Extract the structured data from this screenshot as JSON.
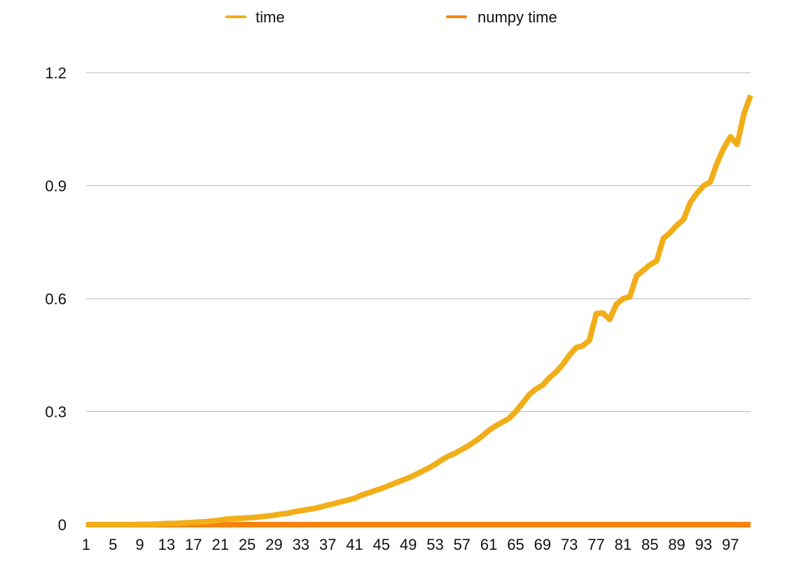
{
  "chart_data": {
    "type": "line",
    "title": "",
    "xlabel": "",
    "ylabel": "",
    "x": [
      1,
      2,
      3,
      4,
      5,
      6,
      7,
      8,
      9,
      10,
      11,
      12,
      13,
      14,
      15,
      16,
      17,
      18,
      19,
      20,
      21,
      22,
      23,
      24,
      25,
      26,
      27,
      28,
      29,
      30,
      31,
      32,
      33,
      34,
      35,
      36,
      37,
      38,
      39,
      40,
      41,
      42,
      43,
      44,
      45,
      46,
      47,
      48,
      49,
      50,
      51,
      52,
      53,
      54,
      55,
      56,
      57,
      58,
      59,
      60,
      61,
      62,
      63,
      64,
      65,
      66,
      67,
      68,
      69,
      70,
      71,
      72,
      73,
      74,
      75,
      76,
      77,
      78,
      79,
      80,
      81,
      82,
      83,
      84,
      85,
      86,
      87,
      88,
      89,
      90,
      91,
      92,
      93,
      94,
      95,
      96,
      97,
      98,
      99,
      100
    ],
    "x_tick_labels": [
      "1",
      "5",
      "9",
      "13",
      "17",
      "21",
      "25",
      "29",
      "33",
      "37",
      "41",
      "45",
      "49",
      "53",
      "57",
      "61",
      "65",
      "69",
      "73",
      "77",
      "81",
      "85",
      "89",
      "93",
      "97"
    ],
    "ylim": [
      0,
      1.2
    ],
    "y_ticks": [
      "0",
      "0.3",
      "0.6",
      "0.9",
      "1.2"
    ],
    "y_tick_values": [
      0,
      0.3,
      0.6,
      0.9,
      1.2
    ],
    "grid": "horizontal",
    "legend_position": "top",
    "series": [
      {
        "name": "time",
        "color": "#f2ae18",
        "values": [
          0.0,
          0.0,
          0.0,
          0.0,
          0.0,
          0.0,
          0.0,
          0.0,
          0.001,
          0.001,
          0.001,
          0.002,
          0.003,
          0.003,
          0.004,
          0.005,
          0.006,
          0.007,
          0.008,
          0.01,
          0.012,
          0.015,
          0.016,
          0.017,
          0.018,
          0.019,
          0.021,
          0.023,
          0.025,
          0.028,
          0.03,
          0.034,
          0.037,
          0.04,
          0.043,
          0.047,
          0.052,
          0.056,
          0.061,
          0.065,
          0.07,
          0.078,
          0.084,
          0.09,
          0.096,
          0.103,
          0.11,
          0.117,
          0.124,
          0.132,
          0.141,
          0.15,
          0.16,
          0.172,
          0.182,
          0.19,
          0.2,
          0.21,
          0.222,
          0.235,
          0.25,
          0.262,
          0.272,
          0.282,
          0.3,
          0.322,
          0.345,
          0.36,
          0.37,
          0.39,
          0.405,
          0.425,
          0.45,
          0.47,
          0.475,
          0.49,
          0.56,
          0.562,
          0.545,
          0.585,
          0.6,
          0.605,
          0.66,
          0.675,
          0.69,
          0.7,
          0.76,
          0.775,
          0.795,
          0.81,
          0.855,
          0.88,
          0.9,
          0.91,
          0.96,
          1.0,
          1.03,
          1.01,
          1.09,
          1.14
        ]
      },
      {
        "name": "numpy time",
        "color": "#f7820f",
        "values": [
          0,
          0,
          0,
          0,
          0,
          0,
          0,
          0,
          0,
          0,
          0,
          0,
          0,
          0,
          0,
          0,
          0,
          0,
          0,
          0,
          0,
          0,
          0,
          0,
          0,
          0,
          0,
          0,
          0,
          0,
          0,
          0,
          0,
          0,
          0,
          0,
          0,
          0,
          0,
          0,
          0,
          0,
          0,
          0,
          0,
          0,
          0,
          0,
          0,
          0,
          0,
          0,
          0,
          0,
          0,
          0,
          0,
          0,
          0,
          0,
          0,
          0,
          0,
          0,
          0,
          0,
          0,
          0,
          0,
          0,
          0,
          0,
          0,
          0,
          0,
          0,
          0,
          0,
          0,
          0,
          0,
          0,
          0,
          0,
          0,
          0,
          0,
          0,
          0,
          0,
          0,
          0,
          0,
          0,
          0,
          0,
          0,
          0,
          0,
          0
        ]
      }
    ]
  }
}
